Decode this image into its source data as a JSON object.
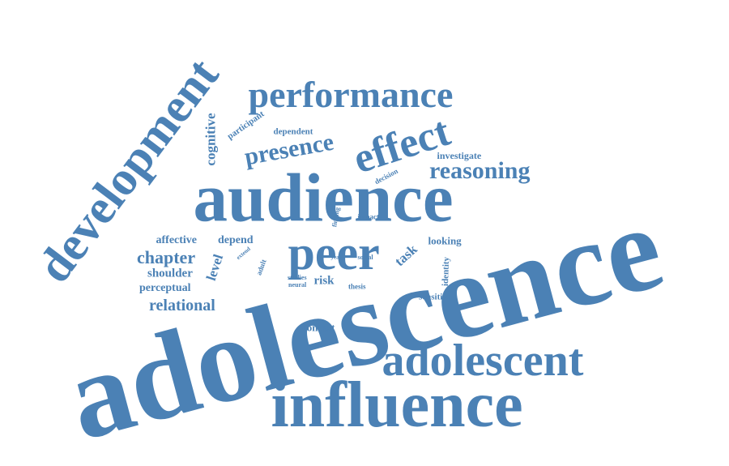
{
  "colors": {
    "word": "#4b81b5",
    "background": "#ffffff"
  },
  "words": [
    {
      "text": "adolescence"
    },
    {
      "text": "influence"
    },
    {
      "text": "adolescent"
    },
    {
      "text": "audience"
    },
    {
      "text": "development"
    },
    {
      "text": "peer"
    },
    {
      "text": "performance"
    },
    {
      "text": "effect"
    },
    {
      "text": "presence"
    },
    {
      "text": "reasoning"
    },
    {
      "text": "chapter"
    },
    {
      "text": "relational"
    },
    {
      "text": "cognitive"
    },
    {
      "text": "affective"
    },
    {
      "text": "depend"
    },
    {
      "text": "shoulder"
    },
    {
      "text": "perceptual"
    },
    {
      "text": "level"
    },
    {
      "text": "task"
    },
    {
      "text": "looking"
    },
    {
      "text": "dependent"
    },
    {
      "text": "investigate"
    },
    {
      "text": "participant"
    },
    {
      "text": "decision"
    },
    {
      "text": "identity"
    },
    {
      "text": "sensitive"
    },
    {
      "text": "context"
    },
    {
      "text": "risk"
    },
    {
      "text": "impact"
    },
    {
      "text": "finding"
    },
    {
      "text": "social"
    },
    {
      "text": "year"
    },
    {
      "text": "extend"
    },
    {
      "text": "adult"
    },
    {
      "text": "studies"
    },
    {
      "text": "neural"
    },
    {
      "text": "thesis"
    }
  ]
}
